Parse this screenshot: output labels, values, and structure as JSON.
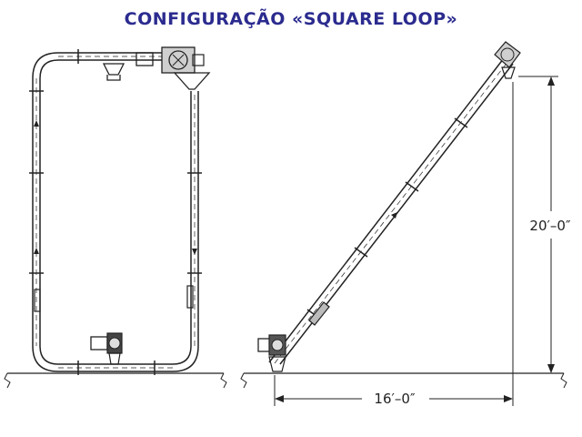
{
  "title": "CONFIGURAÇÃO «SQUARE LOOP»",
  "colors": {
    "title": "#2b2b8f",
    "line": "#222222"
  },
  "dimensions": {
    "height": "20′–0″",
    "length": "16′–0″"
  }
}
